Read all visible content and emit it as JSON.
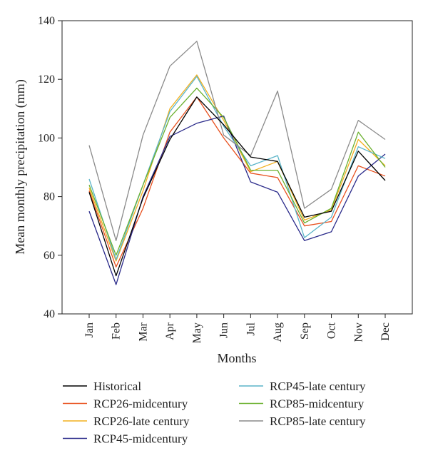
{
  "chart_data": {
    "type": "line",
    "title": "",
    "xlabel": "Months",
    "ylabel": "Mean monthly precipitation (mm)",
    "ylim": [
      40,
      140
    ],
    "yticks": [
      40,
      60,
      80,
      100,
      120,
      140
    ],
    "grid": false,
    "legend_position": "bottom",
    "categories": [
      "Jan",
      "Feb",
      "Mar",
      "Apr",
      "May",
      "Jun",
      "Jul",
      "Aug",
      "Sep",
      "Oct",
      "Nov",
      "Dec"
    ],
    "series": [
      {
        "name": "Historical",
        "color": "#000000",
        "values": [
          81.5,
          53,
          79.5,
          99.5,
          114,
          104.5,
          93.5,
          92,
          73,
          75,
          95.5,
          85.5
        ]
      },
      {
        "name": "RCP26-midcentury",
        "color": "#e8501e",
        "values": [
          82,
          56,
          76,
          102,
          114,
          100,
          88,
          86.5,
          70,
          71.5,
          90.5,
          87
        ]
      },
      {
        "name": "RCP26-late century",
        "color": "#f2b01e",
        "values": [
          83,
          58,
          82,
          110,
          121.5,
          106,
          88.5,
          92,
          72,
          75.5,
          99.5,
          90.5
        ]
      },
      {
        "name": "RCP45-midcentury",
        "color": "#2a2a8a",
        "values": [
          75,
          50,
          80,
          100.5,
          105,
          107.5,
          85,
          81.5,
          65,
          68,
          87,
          94.5
        ]
      },
      {
        "name": "RCP45-late century",
        "color": "#5ab4c8",
        "values": [
          86,
          58.5,
          84,
          109,
          121,
          104,
          90.5,
          94,
          66,
          73,
          97,
          93
        ]
      },
      {
        "name": "RCP85-midcentury",
        "color": "#6ab02e",
        "values": [
          84,
          60,
          84,
          107,
          117,
          107,
          89,
          89,
          71,
          76,
          102,
          90
        ]
      },
      {
        "name": "RCP85-late century",
        "color": "#8a8a8a",
        "values": [
          97.5,
          65,
          101,
          124.5,
          133,
          101,
          94,
          116,
          76,
          82.5,
          106,
          99.5
        ]
      }
    ]
  }
}
